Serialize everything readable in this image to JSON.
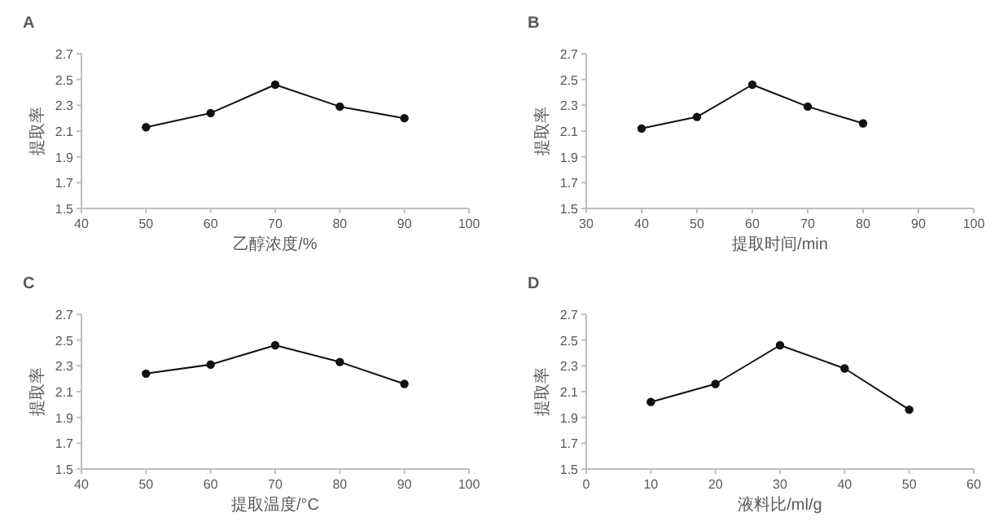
{
  "chart_data": [
    {
      "type": "line",
      "title": "A",
      "xlabel": "乙醇浓度/%",
      "ylabel": "提取率",
      "x": [
        50,
        60,
        70,
        80,
        90
      ],
      "series": [
        {
          "color": "#111111",
          "values": [
            2.13,
            2.24,
            2.46,
            2.29,
            2.2
          ]
        }
      ],
      "xlim": [
        40,
        100
      ],
      "xticks": [
        40,
        50,
        60,
        70,
        80,
        90,
        100
      ],
      "ylim": [
        1.5,
        2.7
      ],
      "yticks": [
        1.5,
        1.7,
        1.9,
        2.1,
        2.3,
        2.5,
        2.7
      ],
      "marker": "circle",
      "line_style": "solid"
    },
    {
      "type": "line",
      "title": "B",
      "xlabel": "提取时间/min",
      "ylabel": "提取率",
      "x": [
        40,
        50,
        60,
        70,
        80
      ],
      "series": [
        {
          "color": "#111111",
          "values": [
            2.12,
            2.21,
            2.46,
            2.29,
            2.16
          ]
        }
      ],
      "xlim": [
        30,
        100
      ],
      "xticks": [
        30,
        40,
        50,
        60,
        70,
        80,
        90,
        100
      ],
      "ylim": [
        1.5,
        2.7
      ],
      "yticks": [
        1.5,
        1.7,
        1.9,
        2.1,
        2.3,
        2.5,
        2.7
      ],
      "marker": "circle",
      "line_style": "solid"
    },
    {
      "type": "line",
      "title": "C",
      "xlabel": "提取温度/°C",
      "ylabel": "提取率",
      "x": [
        50,
        60,
        70,
        80,
        90
      ],
      "series": [
        {
          "color": "#111111",
          "values": [
            2.24,
            2.31,
            2.46,
            2.33,
            2.16
          ]
        }
      ],
      "xlim": [
        40,
        100
      ],
      "xticks": [
        40,
        50,
        60,
        70,
        80,
        90,
        100
      ],
      "ylim": [
        1.5,
        2.7
      ],
      "yticks": [
        1.5,
        1.7,
        1.9,
        2.1,
        2.3,
        2.5,
        2.7
      ],
      "marker": "circle",
      "line_style": "solid"
    },
    {
      "type": "line",
      "title": "D",
      "xlabel": "液料比/ml/g",
      "ylabel": "提取率",
      "x": [
        10,
        20,
        30,
        40,
        50
      ],
      "series": [
        {
          "color": "#111111",
          "values": [
            2.02,
            2.16,
            2.46,
            2.28,
            1.96
          ]
        }
      ],
      "xlim": [
        0,
        60
      ],
      "xticks": [
        0,
        10,
        20,
        30,
        40,
        50,
        60
      ],
      "ylim": [
        1.5,
        2.7
      ],
      "yticks": [
        1.5,
        1.7,
        1.9,
        2.1,
        2.3,
        2.5,
        2.7
      ],
      "marker": "circle",
      "line_style": "solid"
    }
  ]
}
